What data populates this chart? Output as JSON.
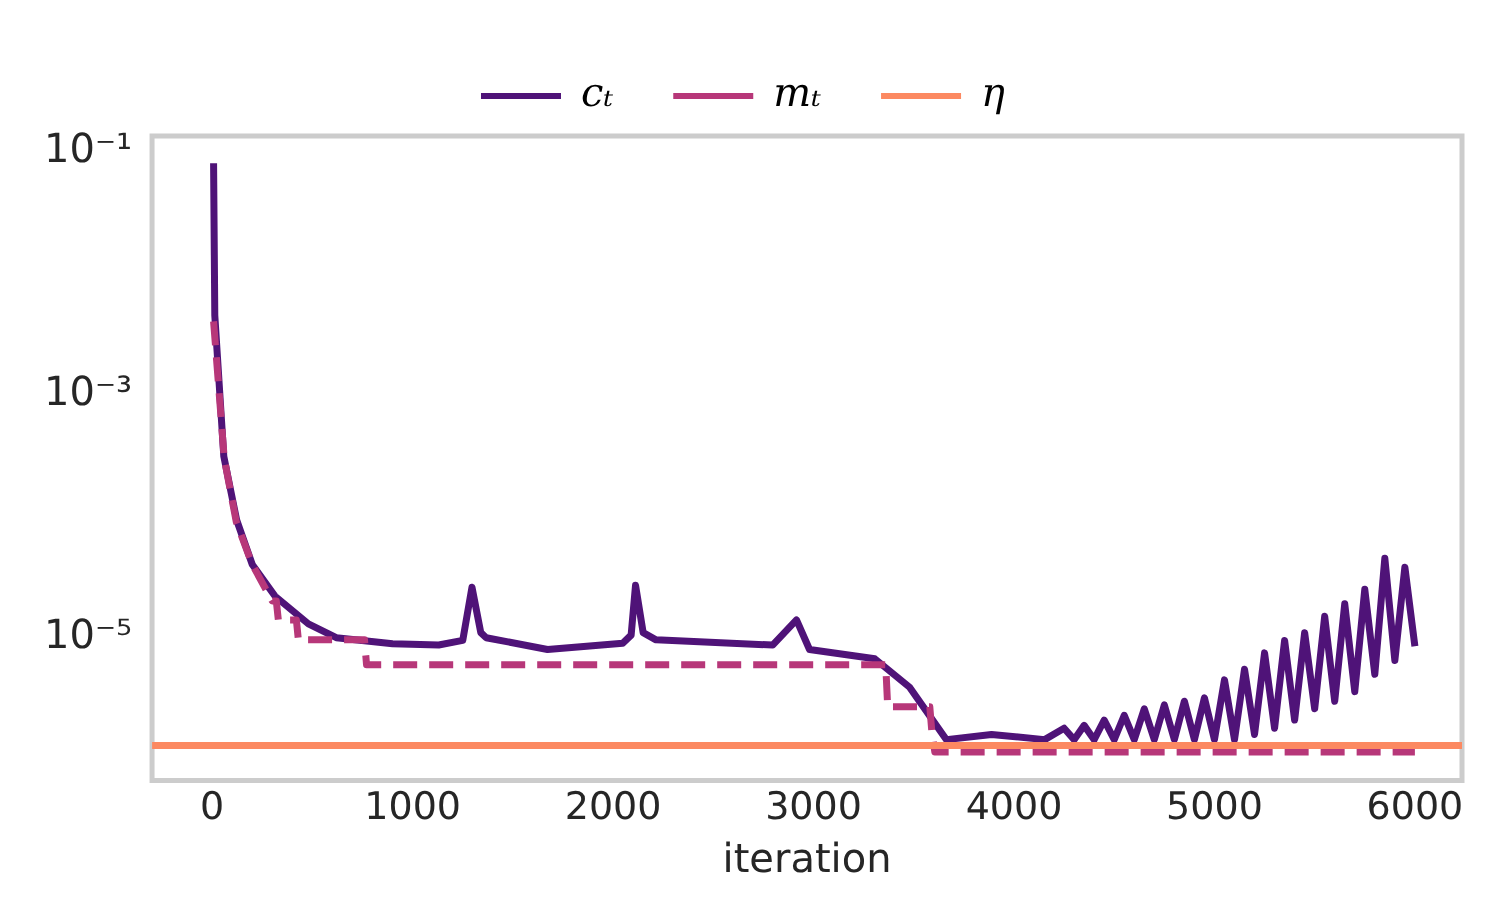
{
  "chart_data": {
    "type": "line",
    "xlabel": "iteration",
    "log": "y",
    "grid": false,
    "legend": "top",
    "marker": "none",
    "xlim": [
      -300,
      6235
    ],
    "xticks": [
      0,
      1000,
      2000,
      3000,
      4000,
      5000,
      6000
    ],
    "ylim": [
      6.7e-07,
      0.134
    ],
    "yticks": [
      {
        "value": 0.1,
        "label": "10⁻¹"
      },
      {
        "value": 0.001,
        "label": "10⁻³"
      },
      {
        "value": 1e-05,
        "label": "10⁻⁵"
      }
    ],
    "series": [
      {
        "name": "cₜ",
        "color": "#4f1378",
        "line_style": "solid",
        "x": [
          7,
          13,
          58,
          122,
          200,
          313,
          480,
          619,
          900,
          1130,
          1250,
          1296,
          1340,
          1367,
          1673,
          2048,
          2090,
          2112,
          2150,
          2214,
          2796,
          2915,
          2980,
          3306,
          3480,
          3663,
          3888,
          4153,
          4250,
          4300,
          4350,
          4400,
          4450,
          4500,
          4550,
          4600,
          4650,
          4700,
          4750,
          4800,
          4850,
          4900,
          4950,
          5000,
          5050,
          5100,
          5150,
          5200,
          5250,
          5300,
          5350,
          5400,
          5450,
          5500,
          5550,
          5600,
          5650,
          5700,
          5750,
          5800,
          5850,
          5900,
          5950,
          6000
        ],
        "values": [
          0.08,
          0.0045,
          0.00031,
          9.3e-05,
          4e-05,
          2.2e-05,
          1.3e-05,
          1e-05,
          8.9e-06,
          8.7e-06,
          9.5e-06,
          2.6e-05,
          1.1e-05,
          1e-05,
          8e-06,
          9e-06,
          1.05e-05,
          2.7e-05,
          1.1e-05,
          9.6e-06,
          8.7e-06,
          1.4e-05,
          8e-06,
          6.7e-06,
          3.9e-06,
          1.45e-06,
          1.6e-06,
          1.45e-06,
          1.8e-06,
          1.45e-06,
          1.9e-06,
          1.45e-06,
          2.1e-06,
          1.45e-06,
          2.3e-06,
          1.45e-06,
          2.6e-06,
          1.45e-06,
          2.8e-06,
          1.45e-06,
          3e-06,
          1.45e-06,
          3.2e-06,
          1.45e-06,
          4.5e-06,
          1.45e-06,
          5.5e-06,
          1.6e-06,
          7.5e-06,
          1.8e-06,
          9.5e-06,
          2.1e-06,
          1.1e-05,
          2.6e-06,
          1.5e-05,
          3e-06,
          1.9e-05,
          3.6e-06,
          2.5e-05,
          5e-06,
          4.5e-05,
          6.5e-06,
          3.8e-05,
          8.5e-06
        ]
      },
      {
        "name": "mₜ",
        "color": "#b73779",
        "line_style": "dashed",
        "x": [
          7,
          60,
          120,
          200,
          300,
          320,
          330,
          420,
          430,
          760,
          770,
          3360,
          3370,
          3580,
          3590,
          3605,
          6000
        ],
        "values": [
          0.004,
          0.0003,
          9e-05,
          4e-05,
          2e-05,
          2e-05,
          1.4e-05,
          1.4e-05,
          9.6e-06,
          9.6e-06,
          6e-06,
          6e-06,
          2.7e-06,
          2.7e-06,
          1.7e-06,
          1.15e-06,
          1.15e-06
        ]
      },
      {
        "name": "η",
        "color": "#fc8961",
        "line_style": "solid",
        "x": [
          -300,
          6235
        ],
        "values": [
          1.3e-06,
          1.3e-06
        ]
      }
    ]
  }
}
